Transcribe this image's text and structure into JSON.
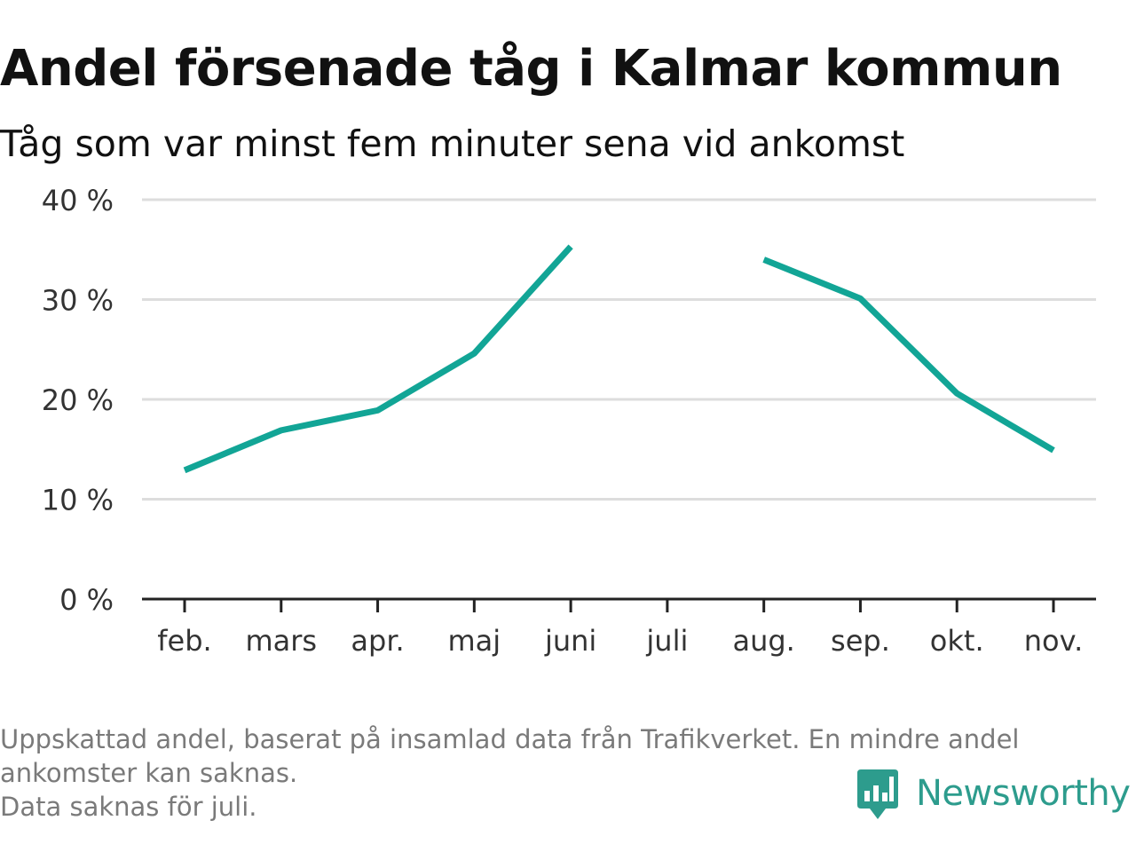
{
  "title": "Andel försenade tåg i Kalmar kommun",
  "subtitle": "Tåg som var minst fem minuter sena vid ankomst",
  "footnote": {
    "line1": "Uppskattad andel, baserat på insamlad data från Trafikverket. En mindre andel",
    "line2": "ankomster kan saknas.",
    "line3": "Data saknas för juli."
  },
  "brand": {
    "name": "Newsworthy",
    "icon": "bar-chart-speech-bubble-icon"
  },
  "colors": {
    "line": "#12a596",
    "grid": "#dddddd",
    "axis": "#222222",
    "brand": "#2d9c8d",
    "footnote": "#7a7a7a"
  },
  "chart_data": {
    "type": "line",
    "categories": [
      "feb.",
      "mars",
      "apr.",
      "maj",
      "juni",
      "juli",
      "aug.",
      "sep.",
      "okt.",
      "nov."
    ],
    "series": [
      {
        "values": [
          12.9,
          16.9,
          18.9,
          24.6,
          35.3,
          null,
          34.0,
          30.1,
          20.6,
          14.9
        ]
      }
    ],
    "ylim": [
      0,
      40
    ],
    "yticks": [
      0,
      10,
      20,
      30,
      40
    ],
    "ytick_labels": [
      "0 %",
      "10 %",
      "20 %",
      "30 %",
      "40 %"
    ],
    "grid": true,
    "legend": "none"
  }
}
